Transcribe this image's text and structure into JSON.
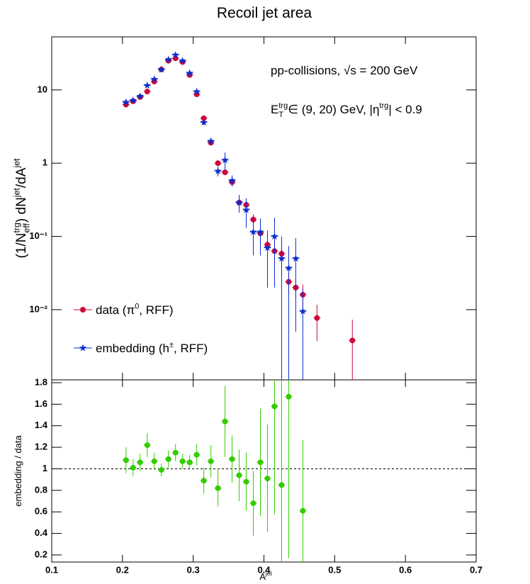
{
  "chart_data": [
    {
      "type": "scatter",
      "title": "Recoil jet area",
      "log_y": true,
      "annotations": [
        {
          "segments": [
            {
              "text": "pp-collisions, √s = 200 GeV"
            }
          ]
        },
        {
          "segments": [
            {
              "text": "E"
            },
            {
              "text": "T",
              "pos": "sub"
            },
            {
              "text": "trg",
              "pos": "sup"
            },
            {
              "text": " ∈ (9, 20) GeV, |η"
            },
            {
              "text": "trg",
              "pos": "sup"
            },
            {
              "text": "| < 0.9"
            }
          ]
        }
      ],
      "ylabel": {
        "segments": [
          {
            "text": "(1/N"
          },
          {
            "text": "eff",
            "pos": "sub"
          },
          {
            "text": "trg",
            "pos": "sup"
          },
          {
            "text": ") dN"
          },
          {
            "text": "jet",
            "pos": "sup"
          },
          {
            "text": "/dA"
          },
          {
            "text": "jet",
            "pos": "sup"
          }
        ]
      },
      "xlim": [
        0.1,
        0.7
      ],
      "xticks": [
        0.1,
        0.2,
        0.3,
        0.4,
        0.5,
        0.6,
        0.7
      ],
      "xtick_labels": false,
      "ylim": [
        0.0011,
        53
      ],
      "yticks": [
        {
          "value": 0.01,
          "label": "10⁻²"
        },
        {
          "value": 0.1,
          "label": "10⁻¹"
        },
        1,
        10
      ],
      "legend": "bottom-left",
      "x_error": 0.005,
      "x": [
        0.205,
        0.215,
        0.225,
        0.235,
        0.245,
        0.255,
        0.265,
        0.275,
        0.285,
        0.295,
        0.305,
        0.315,
        0.325,
        0.335,
        0.345,
        0.355,
        0.365,
        0.375,
        0.385,
        0.395,
        0.405,
        0.415,
        0.425,
        0.435,
        0.445,
        0.455,
        0.465,
        0.475,
        0.485,
        0.495,
        0.505,
        0.515,
        0.525
      ],
      "series": [
        {
          "name": {
            "segments": [
              {
                "text": "data (π"
              },
              {
                "text": "0",
                "pos": "sup"
              },
              {
                "text": ", RFF)"
              }
            ]
          },
          "color": "#cc0a3c",
          "marker": "circle",
          "values": [
            6.3,
            7.0,
            8.0,
            9.5,
            13,
            19,
            25,
            27,
            24,
            16,
            8.7,
            4.1,
            1.9,
            1.0,
            0.75,
            0.55,
            0.29,
            0.27,
            0.17,
            0.11,
            0.077,
            0.063,
            0.058,
            0.024,
            0.02,
            0.016,
            null,
            0.0077,
            null,
            null,
            null,
            null,
            0.0038
          ],
          "errors": [
            0.4,
            0.4,
            0.5,
            0.6,
            0.8,
            1,
            1.3,
            1.4,
            1.3,
            0.9,
            0.5,
            0.25,
            0.12,
            0.08,
            0.06,
            0.05,
            0.05,
            0.06,
            0.03,
            0.025,
            0.02,
            0.015,
            0.015,
            0.008,
            0.006,
            0.006,
            null,
            0.004,
            null,
            null,
            null,
            null,
            0.0035
          ]
        },
        {
          "name": {
            "segments": [
              {
                "text": "embedding (h"
              },
              {
                "text": "±",
                "pos": "sup"
              },
              {
                "text": ", RFF)"
              }
            ]
          },
          "color": "#0a2ccc",
          "marker": "star",
          "values": [
            6.8,
            7.2,
            8.2,
            11.5,
            14,
            19,
            26,
            30,
            25,
            17,
            9.5,
            3.6,
            2.0,
            0.78,
            1.1,
            0.58,
            0.29,
            0.23,
            0.115,
            0.115,
            0.07,
            0.1,
            0.05,
            0.037,
            0.05,
            0.0095,
            null,
            null,
            null,
            null,
            null,
            null,
            null
          ],
          "errors": [
            0.4,
            0.4,
            0.5,
            0.7,
            0.8,
            1,
            1.4,
            1.6,
            1.4,
            1,
            0.6,
            0.3,
            0.15,
            0.12,
            0.3,
            0.1,
            0.08,
            0.1,
            0.06,
            0.06,
            0.05,
            0.08,
            0.05,
            0.037,
            0.045,
            0.0095,
            null,
            null,
            null,
            null,
            null,
            null,
            null
          ]
        }
      ]
    },
    {
      "type": "scatter",
      "log_y": false,
      "ylabel": {
        "segments": [
          {
            "text": "embedding / data"
          }
        ]
      },
      "xlabel": {
        "segments": [
          {
            "text": "A"
          },
          {
            "text": "jet",
            "pos": "sup"
          }
        ]
      },
      "xlim": [
        0.1,
        0.7
      ],
      "xticks": [
        0.1,
        0.2,
        0.3,
        0.4,
        0.5,
        0.6,
        0.7
      ],
      "xtick_labels": true,
      "ylim": [
        0.134,
        1.826
      ],
      "yticks": [
        0.2,
        0.4,
        0.6,
        0.8,
        1,
        1.2,
        1.4,
        1.6,
        1.8
      ],
      "reference_line": 1,
      "x_error": 0.005,
      "x": [
        0.205,
        0.215,
        0.225,
        0.235,
        0.245,
        0.255,
        0.265,
        0.275,
        0.285,
        0.295,
        0.305,
        0.315,
        0.325,
        0.335,
        0.345,
        0.355,
        0.365,
        0.375,
        0.385,
        0.395,
        0.405,
        0.415,
        0.425,
        0.435,
        0.445,
        0.455
      ],
      "series": [
        {
          "color": "#33cc00",
          "marker": "circle",
          "values": [
            1.08,
            1.01,
            1.06,
            1.22,
            1.07,
            0.99,
            1.09,
            1.15,
            1.07,
            1.06,
            1.13,
            0.89,
            1.07,
            0.82,
            1.44,
            1.09,
            0.94,
            0.88,
            0.68,
            1.06,
            0.91,
            1.58,
            0.85,
            1.67,
            null,
            0.61
          ],
          "errors": [
            0.12,
            0.08,
            0.08,
            0.11,
            0.08,
            0.06,
            0.08,
            0.08,
            0.07,
            0.07,
            0.1,
            0.12,
            0.15,
            0.17,
            0.33,
            0.22,
            0.24,
            0.27,
            0.3,
            0.5,
            0.5,
            1.0,
            1.0,
            1.5,
            null,
            0.66
          ]
        }
      ]
    }
  ]
}
